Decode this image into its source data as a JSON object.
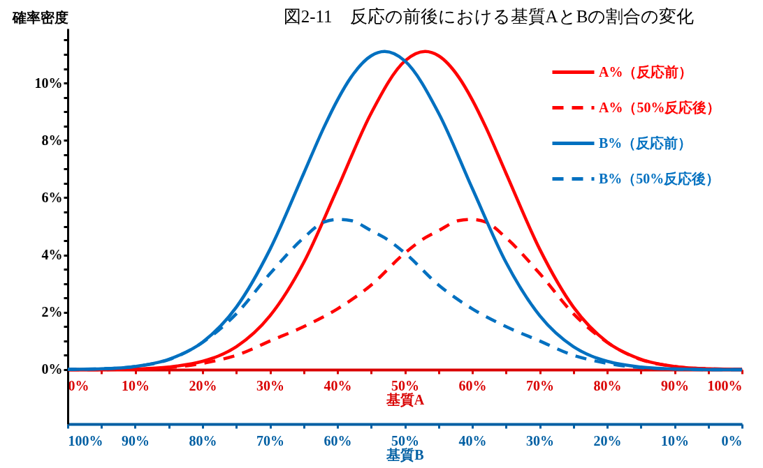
{
  "chart_data": {
    "type": "line",
    "title": "図2-11　反応の前後における基質AとBの割合の変化",
    "ylabel": "確率密度",
    "xlabel": "基質A",
    "x2label": "基質B",
    "x": [
      0,
      5,
      10,
      15,
      20,
      22.5,
      25,
      30,
      35,
      40,
      45,
      50,
      53,
      55,
      58,
      60,
      62,
      65,
      70,
      75,
      80,
      85,
      90,
      95,
      100
    ],
    "series": [
      {
        "name": "A%（反応前）",
        "color": "#ff0000",
        "line_style": "solid",
        "values": [
          0,
          0,
          0.02,
          0.09,
          0.29,
          0.49,
          0.8,
          1.88,
          3.74,
          6.32,
          8.95,
          10.77,
          11.1,
          10.95,
          10.2,
          9.41,
          8.46,
          6.85,
          4.2,
          2.18,
          0.96,
          0.36,
          0.11,
          0.03,
          0.01
        ]
      },
      {
        "name": "A%（50%反応後）",
        "color": "#ff0000",
        "line_style": "dashed",
        "values": [
          0,
          0,
          0.02,
          0.07,
          0.22,
          0.34,
          0.5,
          1.0,
          1.5,
          2.12,
          2.95,
          4.07,
          4.6,
          4.85,
          5.2,
          5.24,
          5.15,
          4.6,
          3.35,
          1.95,
          0.95,
          0.35,
          0.11,
          0.03,
          0.01
        ]
      },
      {
        "name": "B%（反応前）",
        "color": "#0070c0",
        "line_style": "solid",
        "axis": "x2",
        "values": [
          0,
          0,
          0.02,
          0.09,
          0.29,
          0.49,
          0.8,
          1.88,
          3.74,
          6.32,
          8.95,
          10.77,
          11.1,
          10.95,
          10.2,
          9.41,
          8.46,
          6.85,
          4.2,
          2.18,
          0.96,
          0.36,
          0.11,
          0.03,
          0.01
        ]
      },
      {
        "name": "B%（50%反応後）",
        "color": "#0070c0",
        "line_style": "dashed",
        "axis": "x2",
        "values": [
          0,
          0,
          0.02,
          0.07,
          0.22,
          0.34,
          0.5,
          1.0,
          1.5,
          2.12,
          2.95,
          4.07,
          4.6,
          4.85,
          5.2,
          5.24,
          5.15,
          4.6,
          3.35,
          1.95,
          0.95,
          0.35,
          0.11,
          0.03,
          0.01
        ]
      }
    ],
    "xlim": [
      0,
      100
    ],
    "xticks": [
      {
        "value": 0,
        "label": "0%"
      },
      {
        "value": 5,
        "label": null
      },
      {
        "value": 10,
        "label": "10%"
      },
      {
        "value": 15,
        "label": null
      },
      {
        "value": 20,
        "label": "20%"
      },
      {
        "value": 25,
        "label": null
      },
      {
        "value": 30,
        "label": "30%"
      },
      {
        "value": 35,
        "label": null
      },
      {
        "value": 40,
        "label": "40%"
      },
      {
        "value": 45,
        "label": null
      },
      {
        "value": 50,
        "label": "50%"
      },
      {
        "value": 55,
        "label": null
      },
      {
        "value": 60,
        "label": "60%"
      },
      {
        "value": 65,
        "label": null
      },
      {
        "value": 70,
        "label": "70%"
      },
      {
        "value": 75,
        "label": null
      },
      {
        "value": 80,
        "label": "80%"
      },
      {
        "value": 85,
        "label": null
      },
      {
        "value": 90,
        "label": "90%"
      },
      {
        "value": 95,
        "label": null
      },
      {
        "value": 100,
        "label": "100%"
      }
    ],
    "x2lim": [
      100,
      0
    ],
    "x2ticks": [
      {
        "value": 100,
        "label": "100%"
      },
      {
        "value": 95,
        "label": null
      },
      {
        "value": 90,
        "label": "90%"
      },
      {
        "value": 85,
        "label": null
      },
      {
        "value": 80,
        "label": "80%"
      },
      {
        "value": 75,
        "label": null
      },
      {
        "value": 70,
        "label": "70%"
      },
      {
        "value": 65,
        "label": null
      },
      {
        "value": 60,
        "label": "60%"
      },
      {
        "value": 55,
        "label": null
      },
      {
        "value": 50,
        "label": "50%"
      },
      {
        "value": 45,
        "label": null
      },
      {
        "value": 40,
        "label": "40%"
      },
      {
        "value": 35,
        "label": null
      },
      {
        "value": 30,
        "label": "30%"
      },
      {
        "value": 25,
        "label": null
      },
      {
        "value": 20,
        "label": "20%"
      },
      {
        "value": 15,
        "label": null
      },
      {
        "value": 10,
        "label": "10%"
      },
      {
        "value": 5,
        "label": null
      },
      {
        "value": 0,
        "label": "0%"
      }
    ],
    "ylim": [
      -1.9,
      11.9
    ],
    "yticks": [
      {
        "value": 0,
        "label": "0%"
      },
      {
        "value": 0.5,
        "label": null
      },
      {
        "value": 1,
        "label": null
      },
      {
        "value": 1.5,
        "label": null
      },
      {
        "value": 2,
        "label": "2%"
      },
      {
        "value": 2.5,
        "label": null
      },
      {
        "value": 3,
        "label": null
      },
      {
        "value": 3.5,
        "label": null
      },
      {
        "value": 4,
        "label": "4%"
      },
      {
        "value": 4.5,
        "label": null
      },
      {
        "value": 5,
        "label": null
      },
      {
        "value": 5.5,
        "label": null
      },
      {
        "value": 6,
        "label": "6%"
      },
      {
        "value": 6.5,
        "label": null
      },
      {
        "value": 7,
        "label": null
      },
      {
        "value": 7.5,
        "label": null
      },
      {
        "value": 8,
        "label": "8%"
      },
      {
        "value": 8.5,
        "label": null
      },
      {
        "value": 9,
        "label": null
      },
      {
        "value": 9.5,
        "label": null
      },
      {
        "value": 10,
        "label": "10%"
      },
      {
        "value": 10.5,
        "label": null
      },
      {
        "value": 11,
        "label": null
      },
      {
        "value": 11.5,
        "label": null
      }
    ],
    "grid": false,
    "legend": "top right"
  }
}
